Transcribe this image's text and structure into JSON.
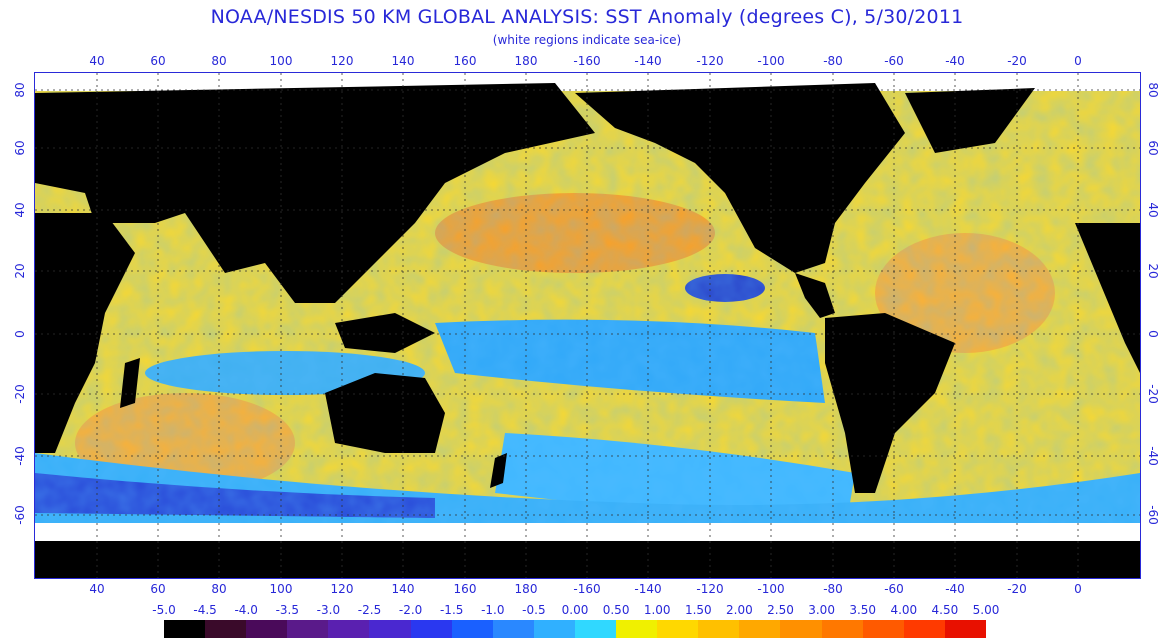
{
  "title": "NOAA/NESDIS 50 KM GLOBAL ANALYSIS: SST Anomaly (degrees C), 5/30/2011",
  "subtitle": "(white regions indicate sea-ice)",
  "longitude_labels": [
    "40",
    "60",
    "80",
    "100",
    "120",
    "140",
    "160",
    "180",
    "-160",
    "-140",
    "-120",
    "-100",
    "-80",
    "-60",
    "-40",
    "-20",
    "0"
  ],
  "latitude_labels": [
    "80",
    "60",
    "40",
    "20",
    "0",
    "-20",
    "-40",
    "-60"
  ],
  "colorbar": {
    "labels": [
      "-5.0",
      "-4.5",
      "-4.0",
      "-3.5",
      "-3.0",
      "-2.5",
      "-2.0",
      "-1.5",
      "-1.0",
      "-0.5",
      "0.00",
      "0.50",
      "1.00",
      "1.50",
      "2.00",
      "2.50",
      "3.00",
      "3.50",
      "4.00",
      "4.50",
      "5.00"
    ],
    "colors": [
      "#000000",
      "#3a0a2a",
      "#4a0a5a",
      "#5a1a8a",
      "#5a20b0",
      "#4a28d0",
      "#2a38f0",
      "#1a60ff",
      "#2a88ff",
      "#30b0ff",
      "#30d8ff",
      "#f0f000",
      "#ffd800",
      "#ffc000",
      "#ffa800",
      "#ff9000",
      "#ff7800",
      "#ff5a00",
      "#ff3a00",
      "#e81000"
    ]
  },
  "colors": {
    "land": "#000000",
    "sea_ice": "#ffffff",
    "warm_anomaly": "#ffb020",
    "neutral_anomaly": "#f8e020",
    "cool_anomaly": "#30a0f0",
    "cold_anomaly": "#2030c0",
    "text": "#2828d8"
  }
}
